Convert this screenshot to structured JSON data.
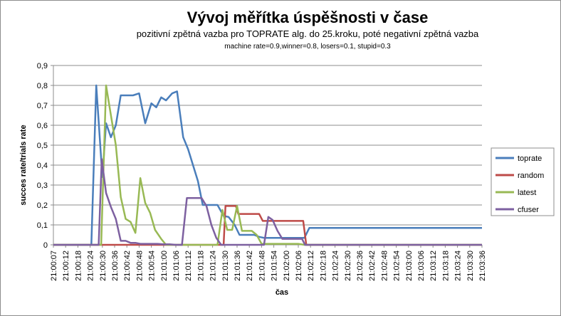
{
  "chart_data": {
    "type": "line",
    "title": "Vývoj měřítka úspěšnosti v čase",
    "subtitle": "pozitivní zpětná vazba pro TOPRATE alg. do 25.kroku, poté negativní zpětná vazba",
    "params": "machine rate=0.9,winner=0.8, losers=0.1, stupid=0.3",
    "xlabel": "čas",
    "ylabel": "succes rate/trials rate",
    "ylim": [
      0,
      0.9
    ],
    "yticks": [
      "0",
      "0,1",
      "0,2",
      "0,3",
      "0,4",
      "0,5",
      "0,6",
      "0,7",
      "0,8",
      "0,9"
    ],
    "grid": "horizontal",
    "legend_position": "right",
    "x_labels": [
      "21:00:07",
      "21:00:12",
      "21:00:18",
      "21:00:24",
      "21:00:30",
      "21:00:36",
      "21:00:42",
      "21:00:48",
      "21:00:54",
      "21:01:00",
      "21:01:06",
      "21:01:12",
      "21:01:18",
      "21:01:24",
      "21:01:30",
      "21:01:36",
      "21:01:42",
      "21:01:48",
      "21:01:54",
      "21:02:00",
      "21:02:06",
      "21:02:12",
      "21:02:18",
      "21:02:24",
      "21:02:30",
      "21:02:36",
      "21:02:42",
      "21:02:48",
      "21:02:54",
      "21:03:00",
      "21:03:06",
      "21:03:12",
      "21:03:18",
      "21:03:24",
      "21:03:30",
      "21:03:36"
    ],
    "series": [
      {
        "name": "toprate",
        "color": "#4a7ebb",
        "points": [
          [
            0,
            0
          ],
          [
            1,
            0
          ],
          [
            2,
            0
          ],
          [
            3,
            0
          ],
          [
            3.1,
            0
          ],
          [
            3.5,
            0.8
          ],
          [
            4,
            0.34
          ],
          [
            4.3,
            0.61
          ],
          [
            4.7,
            0.54
          ],
          [
            5.1,
            0.6
          ],
          [
            5.5,
            0.75
          ],
          [
            6,
            0.75
          ],
          [
            6.5,
            0.75
          ],
          [
            7,
            0.76
          ],
          [
            7.5,
            0.61
          ],
          [
            8,
            0.71
          ],
          [
            8.4,
            0.69
          ],
          [
            8.8,
            0.74
          ],
          [
            9.2,
            0.725
          ],
          [
            9.7,
            0.76
          ],
          [
            10.1,
            0.77
          ],
          [
            10.6,
            0.54
          ],
          [
            11,
            0.48
          ],
          [
            11.4,
            0.4
          ],
          [
            11.8,
            0.32
          ],
          [
            12.2,
            0.2
          ],
          [
            12.6,
            0.2
          ],
          [
            13,
            0.2
          ],
          [
            13.4,
            0.2
          ],
          [
            13.9,
            0.145
          ],
          [
            14.3,
            0.14
          ],
          [
            14.8,
            0.1
          ],
          [
            15.2,
            0.05
          ],
          [
            15.6,
            0.05
          ],
          [
            16,
            0.05
          ],
          [
            16.4,
            0.05
          ],
          [
            16.8,
            0.04
          ],
          [
            17.2,
            0.035
          ],
          [
            18,
            0.035
          ],
          [
            19,
            0.035
          ],
          [
            20,
            0.035
          ],
          [
            20.5,
            0.035
          ],
          [
            20.9,
            0.085
          ],
          [
            22,
            0.085
          ],
          [
            25,
            0.085
          ],
          [
            28,
            0.085
          ],
          [
            31,
            0.085
          ],
          [
            34,
            0.085
          ],
          [
            35,
            0.085
          ]
        ]
      },
      {
        "name": "random",
        "color": "#be4b48",
        "points": [
          [
            0,
            0
          ],
          [
            3,
            0
          ],
          [
            6,
            0
          ],
          [
            9,
            0
          ],
          [
            11,
            0
          ],
          [
            13,
            0
          ],
          [
            13.9,
            0
          ],
          [
            14.05,
            0.195
          ],
          [
            14.9,
            0.195
          ],
          [
            15.1,
            0.155
          ],
          [
            16,
            0.155
          ],
          [
            16.8,
            0.155
          ],
          [
            17.1,
            0.12
          ],
          [
            18,
            0.12
          ],
          [
            19,
            0.12
          ],
          [
            20,
            0.12
          ],
          [
            20.4,
            0.12
          ],
          [
            20.65,
            0
          ],
          [
            22,
            0
          ],
          [
            26,
            0
          ],
          [
            30,
            0
          ],
          [
            35,
            0
          ]
        ]
      },
      {
        "name": "latest",
        "color": "#98b954",
        "points": [
          [
            0,
            0
          ],
          [
            3,
            0
          ],
          [
            3.9,
            0
          ],
          [
            4.3,
            0.8
          ],
          [
            4.7,
            0.65
          ],
          [
            5.1,
            0.5
          ],
          [
            5.5,
            0.24
          ],
          [
            5.9,
            0.13
          ],
          [
            6.3,
            0.115
          ],
          [
            6.7,
            0.06
          ],
          [
            7.1,
            0.335
          ],
          [
            7.5,
            0.21
          ],
          [
            7.9,
            0.16
          ],
          [
            8.3,
            0.075
          ],
          [
            8.8,
            0.03
          ],
          [
            9.2,
            0
          ],
          [
            10,
            0
          ],
          [
            11,
            0
          ],
          [
            12,
            0
          ],
          [
            13,
            0
          ],
          [
            13.4,
            0
          ],
          [
            13.8,
            0.175
          ],
          [
            14.2,
            0.075
          ],
          [
            14.6,
            0.075
          ],
          [
            15,
            0.195
          ],
          [
            15.4,
            0.07
          ],
          [
            15.8,
            0.07
          ],
          [
            16.2,
            0.07
          ],
          [
            16.6,
            0.05
          ],
          [
            17,
            0.005
          ],
          [
            18,
            0.005
          ],
          [
            19,
            0.005
          ],
          [
            20,
            0.005
          ],
          [
            20.5,
            0
          ],
          [
            22,
            0
          ],
          [
            26,
            0
          ],
          [
            30,
            0
          ],
          [
            35,
            0
          ]
        ]
      },
      {
        "name": "cfuser",
        "color": "#7d60a0",
        "points": [
          [
            0,
            0
          ],
          [
            2,
            0
          ],
          [
            3.7,
            0
          ],
          [
            3.95,
            0.43
          ],
          [
            4.3,
            0.26
          ],
          [
            4.7,
            0.19
          ],
          [
            5.1,
            0.13
          ],
          [
            5.5,
            0.02
          ],
          [
            5.9,
            0.02
          ],
          [
            6.3,
            0.01
          ],
          [
            6.7,
            0.01
          ],
          [
            7.1,
            0.005
          ],
          [
            7.5,
            0.005
          ],
          [
            8,
            0.005
          ],
          [
            8.5,
            0.005
          ],
          [
            9,
            0.003
          ],
          [
            9.5,
            0.003
          ],
          [
            10,
            0
          ],
          [
            10.5,
            0
          ],
          [
            10.9,
            0.235
          ],
          [
            11.3,
            0.235
          ],
          [
            11.7,
            0.235
          ],
          [
            12.1,
            0.235
          ],
          [
            12.5,
            0.195
          ],
          [
            12.9,
            0.1
          ],
          [
            13.3,
            0.035
          ],
          [
            13.7,
            0
          ],
          [
            14.5,
            0
          ],
          [
            15.5,
            0
          ],
          [
            16.5,
            0
          ],
          [
            17.2,
            0
          ],
          [
            17.55,
            0.14
          ],
          [
            17.9,
            0.125
          ],
          [
            18.3,
            0.07
          ],
          [
            18.7,
            0.03
          ],
          [
            19.5,
            0.03
          ],
          [
            20.3,
            0.03
          ],
          [
            20.55,
            0
          ],
          [
            22,
            0
          ],
          [
            26,
            0
          ],
          [
            30,
            0
          ],
          [
            35,
            0
          ]
        ]
      }
    ]
  }
}
